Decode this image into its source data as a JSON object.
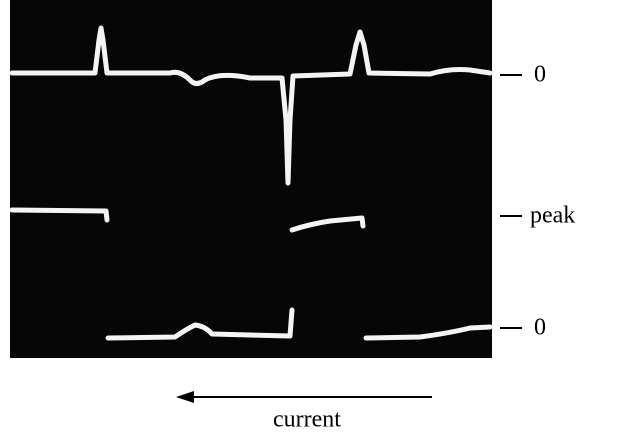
{
  "labels": [
    "0",
    "peak",
    "0"
  ],
  "caption": "current"
}
